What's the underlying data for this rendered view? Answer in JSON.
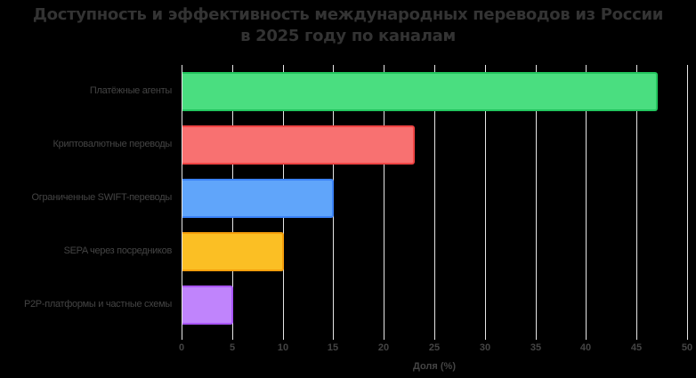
{
  "title_line1": "Доступность и эффективность международных переводов из России",
  "title_line2": "в 2025 году по каналам",
  "chart_data": {
    "type": "bar",
    "orientation": "horizontal",
    "title": "Доступность и эффективность международных переводов из России в 2025 году по каналам",
    "categories": [
      "Платёжные агенты",
      "Криптовалютные переводы",
      "Ограниченные SWIFT-переводы",
      "SEPA через посредников",
      "P2P-платформы и частные схемы"
    ],
    "values": [
      47,
      23,
      15,
      10,
      5
    ],
    "colors": [
      "#4ade80",
      "#f87171",
      "#60a5fa",
      "#fbbf24",
      "#c084fc"
    ],
    "border_colors": [
      "#22c55e",
      "#ef4444",
      "#3b82f6",
      "#f59e0b",
      "#a855f7"
    ],
    "xlabel": "Доля (%)",
    "ylabel": "",
    "xlim": [
      0,
      50
    ],
    "xticks": [
      "0",
      "5",
      "10",
      "15",
      "20",
      "25",
      "30",
      "35",
      "40",
      "45",
      "50"
    ],
    "grid": true,
    "legend": false
  }
}
